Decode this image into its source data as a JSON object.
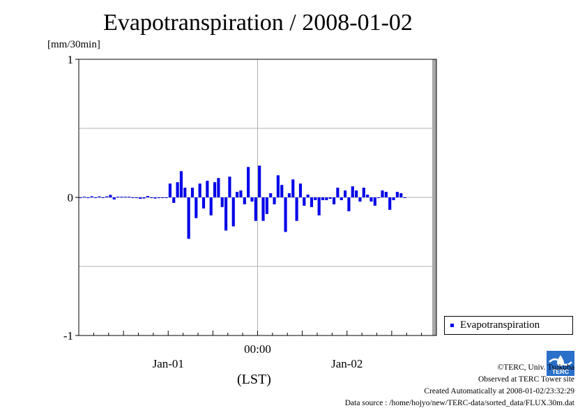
{
  "chart_data": {
    "type": "bar",
    "title": "Evapotranspiration / 2008-01-02",
    "ylabel": "[mm/30min]",
    "xlabel": "(LST)",
    "ylim": [
      -1,
      1
    ],
    "y_ticks": [
      {
        "value": 1,
        "label": "1"
      },
      {
        "value": 0,
        "label": "0"
      },
      {
        "value": -1,
        "label": "-1"
      }
    ],
    "x_time_labels": [
      {
        "label": "00:00",
        "slot": 48
      },
      {
        "label": "Jan-01",
        "slot": 24
      },
      {
        "label": "Jan-02",
        "slot": 72
      }
    ],
    "grid": true,
    "legend_position": "bottom-right",
    "series": [
      {
        "name": "Evapotranspiration",
        "color": "#0000e8",
        "start": "2007-12-31 12:00",
        "interval_minutes": 30,
        "values": [
          0,
          0.005,
          0,
          0.008,
          -0.005,
          0.007,
          0,
          0.007,
          0.018,
          -0.015,
          0.005,
          0.005,
          0.005,
          0.005,
          0,
          0,
          -0.01,
          -0.008,
          0.01,
          0,
          -0.008,
          0,
          0,
          0,
          0.1,
          -0.04,
          0.11,
          0.19,
          0.07,
          -0.3,
          0.07,
          -0.15,
          0.1,
          -0.08,
          0.12,
          -0.13,
          0.11,
          0.14,
          -0.07,
          -0.24,
          0.15,
          -0.21,
          0.04,
          0.05,
          -0.05,
          0.22,
          -0.03,
          -0.17,
          0.23,
          -0.17,
          -0.12,
          0.03,
          -0.05,
          0.16,
          0.09,
          -0.25,
          0.03,
          0.13,
          -0.17,
          0.1,
          -0.06,
          0.02,
          -0.07,
          -0.02,
          -0.13,
          -0.02,
          -0.02,
          -0.01,
          -0.05,
          0.07,
          -0.02,
          0.05,
          -0.1,
          0.08,
          0.05,
          -0.03,
          0.07,
          0.02,
          -0.03,
          -0.06,
          0,
          0.05,
          0.04,
          -0.09,
          -0.02,
          0.04,
          0.03,
          0
        ]
      }
    ]
  },
  "credits": {
    "line1": "©TERC, Univ. Tsukuba",
    "line2": "Observed at TERC Tower site",
    "line3": "Created Automatically at 2008-01-02/23:32:29",
    "line4": "Data source : /home/hojyo/new/TERC-data/sorted_data/FLUX.30m.dat",
    "logo_text": "TERC"
  }
}
